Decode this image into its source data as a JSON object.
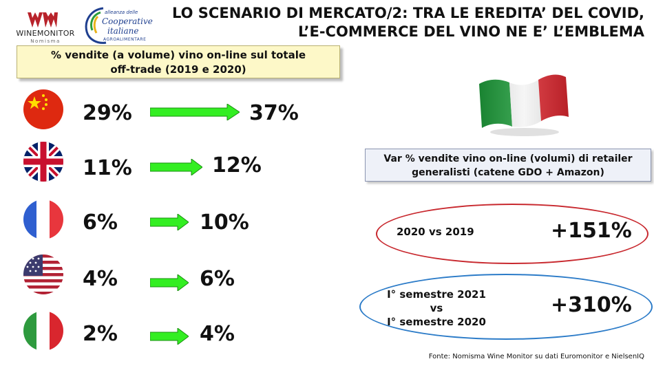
{
  "header": {
    "title_line1": "LO SCENARIO DI MERCATO/2: TRA LE EREDITA’ DEL COVID,",
    "title_line2": "L’E-COMMERCE DEL VINO NE E’ L’EMBLEMA",
    "logo_winemonitor": {
      "name": "WINEMONITOR",
      "sub": "Nomisma"
    },
    "logo_alleanza": {
      "line1": "alleanza delle",
      "line2": "Cooperative",
      "line3": "italiane",
      "line4": "AGROALIMENTARE"
    }
  },
  "left_box": {
    "line1": "% vendite (a volume) vino on-line sul totale",
    "line2": "off-trade (2019 e 2020)"
  },
  "rows": [
    {
      "flag": "china-flag-icon",
      "v2019": "29%",
      "v2020": "37%"
    },
    {
      "flag": "uk-flag-icon",
      "v2019": "11%",
      "v2020": "12%"
    },
    {
      "flag": "france-flag-icon",
      "v2019": "6%",
      "v2020": "10%"
    },
    {
      "flag": "usa-flag-icon",
      "v2019": "4%",
      "v2020": "6%"
    },
    {
      "flag": "italy-flag-icon",
      "v2019": "2%",
      "v2020": "4%"
    }
  ],
  "right_box": {
    "line1": "Var % vendite vino on-line (volumi) di retailer",
    "line2": "generalisti (catene GDO + Amazon)"
  },
  "comparisons": [
    {
      "label": "2020 vs 2019",
      "value": "+151%"
    },
    {
      "label_line1": "I° semestre 2021",
      "label_line2": "vs",
      "label_line3": "I° semestre 2020",
      "value": "+310%"
    }
  ],
  "source": "Fonte: Nomisma Wine Monitor su dati Euromonitor e NielsenIQ",
  "colors": {
    "arrow_fill": "#33ee22",
    "red_ellipse": "#c8282e",
    "blue_ellipse": "#2b7bc8",
    "box_yellow": "#fdf8c8"
  }
}
